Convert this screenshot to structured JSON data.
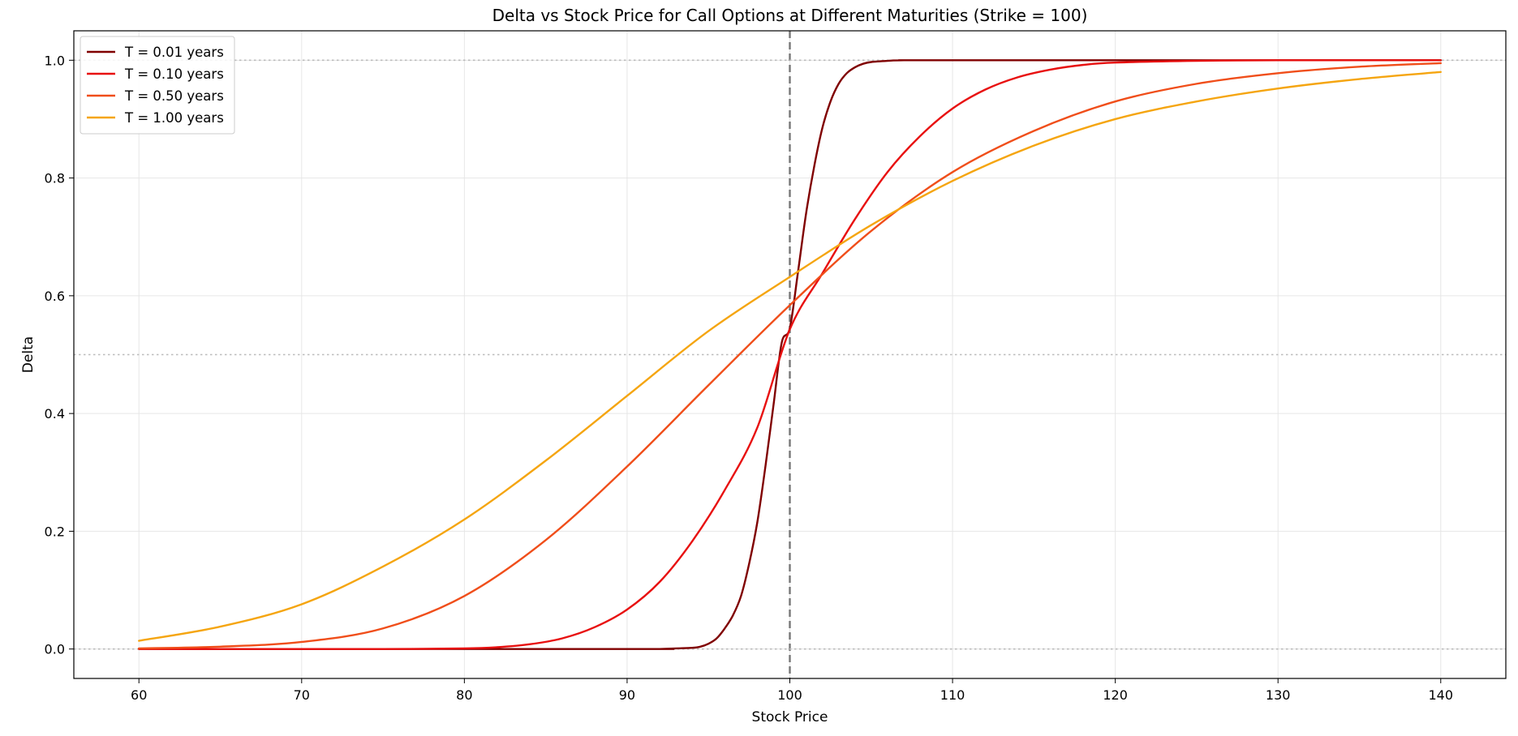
{
  "chart_data": {
    "type": "line",
    "title": "Delta vs Stock Price for Call Options at Different Maturities (Strike = 100)",
    "xlabel": "Stock Price",
    "ylabel": "Delta",
    "xlim": [
      56,
      144
    ],
    "ylim": [
      -0.05,
      1.05
    ],
    "xticks": [
      60,
      70,
      80,
      90,
      100,
      110,
      120,
      130,
      140
    ],
    "yticks": [
      0.0,
      0.2,
      0.4,
      0.6,
      0.8,
      1.0
    ],
    "ytick_labels": [
      "0.0",
      "0.2",
      "0.4",
      "0.6",
      "0.8",
      "1.0"
    ],
    "grid": true,
    "legend_position": "top-left",
    "reference_lines": [
      {
        "orientation": "vertical",
        "value": 100,
        "style": "dashed",
        "color": "#777777"
      },
      {
        "orientation": "horizontal",
        "value": 0.0,
        "style": "dotted",
        "color": "#bbbbbb"
      },
      {
        "orientation": "horizontal",
        "value": 0.5,
        "style": "dotted",
        "color": "#bbbbbb"
      },
      {
        "orientation": "horizontal",
        "value": 1.0,
        "style": "dotted",
        "color": "#bbbbbb"
      }
    ],
    "series": [
      {
        "name": "T = 0.01 years",
        "color": "#800000",
        "x": [
          60,
          90,
          92,
          93,
          94,
          94.5,
          95,
          95.5,
          96,
          96.5,
          97,
          97.5,
          98,
          98.5,
          99,
          99.5,
          100,
          100.5,
          101,
          101.5,
          102,
          102.5,
          103,
          103.5,
          104,
          104.5,
          105,
          106,
          107,
          110,
          140
        ],
        "y": [
          0.0,
          0.0,
          0.0,
          0.001,
          0.002,
          0.004,
          0.009,
          0.018,
          0.035,
          0.057,
          0.09,
          0.145,
          0.215,
          0.31,
          0.415,
          0.52,
          0.545,
          0.64,
          0.74,
          0.82,
          0.885,
          0.93,
          0.96,
          0.978,
          0.988,
          0.994,
          0.997,
          0.999,
          1.0,
          1.0,
          1.0
        ]
      },
      {
        "name": "T = 0.10 years",
        "color": "#e81010",
        "x": [
          60,
          70,
          75,
          80,
          82,
          84,
          86,
          88,
          90,
          92,
          94,
          96,
          98,
          100,
          102,
          104,
          106,
          108,
          110,
          112,
          114,
          116,
          118,
          120,
          125,
          130,
          140
        ],
        "y": [
          0.0,
          0.0,
          0.0,
          0.001,
          0.003,
          0.008,
          0.018,
          0.037,
          0.067,
          0.114,
          0.183,
          0.27,
          0.376,
          0.543,
          0.638,
          0.73,
          0.81,
          0.871,
          0.918,
          0.95,
          0.971,
          0.984,
          0.992,
          0.996,
          0.999,
          1.0,
          1.0
        ]
      },
      {
        "name": "T = 0.50 years",
        "color": "#f04e1a",
        "x": [
          60,
          65,
          70,
          75,
          80,
          85,
          90,
          95,
          100,
          105,
          110,
          115,
          120,
          125,
          130,
          135,
          140
        ],
        "y": [
          0.001,
          0.004,
          0.012,
          0.035,
          0.09,
          0.185,
          0.31,
          0.448,
          0.584,
          0.71,
          0.81,
          0.88,
          0.93,
          0.96,
          0.978,
          0.989,
          0.995
        ]
      },
      {
        "name": "T = 1.00 years",
        "color": "#f5a510",
        "x": [
          60,
          65,
          70,
          75,
          80,
          85,
          90,
          95,
          100,
          105,
          110,
          115,
          120,
          125,
          130,
          135,
          140
        ],
        "y": [
          0.014,
          0.038,
          0.076,
          0.14,
          0.22,
          0.32,
          0.43,
          0.54,
          0.632,
          0.72,
          0.795,
          0.855,
          0.9,
          0.93,
          0.952,
          0.968,
          0.98
        ]
      }
    ]
  }
}
